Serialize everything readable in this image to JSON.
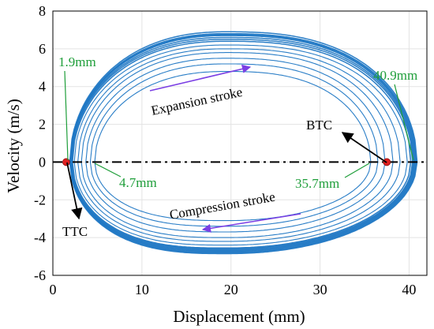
{
  "chart_data": {
    "type": "line",
    "xlabel": "Displacement (mm)",
    "ylabel": "Velocity (m/s)",
    "xlim": [
      0,
      42
    ],
    "ylim": [
      -6,
      8
    ],
    "xticks": [
      0,
      10,
      20,
      30,
      40
    ],
    "yticks": [
      -6,
      -4,
      -2,
      0,
      2,
      4,
      6,
      8
    ],
    "grid": true,
    "colors": {
      "loop": "#1f77c4",
      "arrow": "#7b3fe4",
      "annot": "#1f9e3a",
      "marker": "#e02020",
      "zero_line": "#000000"
    },
    "cycles": [
      {
        "xmin": 1.9,
        "xmax": 40.9,
        "vmax": 6.9,
        "vmin": -4.85
      },
      {
        "xmin": 1.95,
        "xmax": 40.8,
        "vmax": 6.8,
        "vmin": -4.8
      },
      {
        "xmin": 2.0,
        "xmax": 40.7,
        "vmax": 6.75,
        "vmin": -4.75
      },
      {
        "xmin": 2.0,
        "xmax": 40.6,
        "vmax": 6.7,
        "vmin": -4.7
      },
      {
        "xmin": 2.05,
        "xmax": 40.5,
        "vmax": 6.6,
        "vmin": -4.65
      },
      {
        "xmin": 2.1,
        "xmax": 40.4,
        "vmax": 6.5,
        "vmin": -4.6
      },
      {
        "xmin": 2.2,
        "xmax": 40.2,
        "vmax": 6.4,
        "vmin": -4.55
      },
      {
        "xmin": 2.4,
        "xmax": 39.8,
        "vmax": 6.2,
        "vmin": -4.4
      },
      {
        "xmin": 2.8,
        "xmax": 39.0,
        "vmax": 6.0,
        "vmin": -4.2
      },
      {
        "xmin": 3.2,
        "xmax": 38.2,
        "vmax": 5.8,
        "vmin": -4.0
      },
      {
        "xmin": 3.7,
        "xmax": 37.3,
        "vmax": 5.5,
        "vmin": -3.7
      },
      {
        "xmin": 4.2,
        "xmax": 36.5,
        "vmax": 5.2,
        "vmin": -3.4
      },
      {
        "xmin": 4.7,
        "xmax": 35.7,
        "vmax": 4.8,
        "vmin": -3.1
      }
    ],
    "points": [
      {
        "name": "TTC",
        "x": 1.5,
        "y": 0
      },
      {
        "name": "BTC",
        "x": 37.5,
        "y": 0
      }
    ],
    "annotations": {
      "a1": "1.9mm",
      "a2": "40.9mm",
      "a3": "4.7mm",
      "a4": "35.7mm",
      "ttc": "TTC",
      "btc": "BTC",
      "expansion": "Expansion stroke",
      "compression": "Compression stroke"
    }
  }
}
